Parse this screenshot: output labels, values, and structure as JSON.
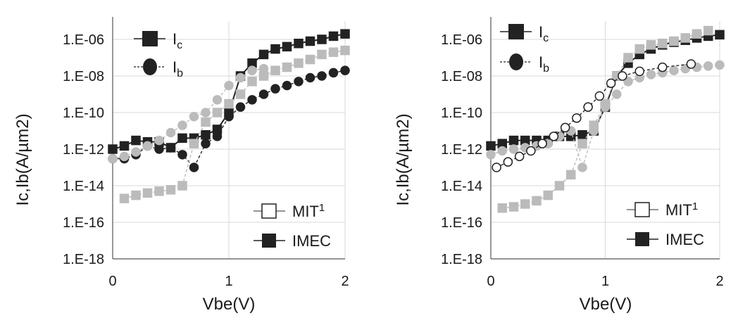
{
  "chart_data": [
    {
      "type": "scatter",
      "xlabel": "Vbe(V)",
      "ylabel": "Ic,Ib(A/µm2)",
      "xticks": [
        "0",
        "1",
        "2"
      ],
      "yticks": [
        "1.E-06",
        "1.E-08",
        "1.E-10",
        "1.E-12",
        "1.E-14",
        "1.E-16",
        "1.E-18"
      ],
      "xlim": [
        0,
        2
      ],
      "ylim": [
        1e-18,
        1e-05
      ],
      "yscale": "log",
      "grid": true,
      "legend_markers": {
        "ic_label": "I",
        "ic_sub": "c",
        "ib_label": "I",
        "ib_sub": "b"
      },
      "legend_sources": {
        "mit_label": "MIT",
        "mit_sup": "1",
        "imec_label": "IMEC"
      },
      "series": [
        {
          "name": "IMEC Ic",
          "color": "#222222",
          "marker": "square",
          "filled": true,
          "line": "solid",
          "x": [
            0,
            0.1,
            0.2,
            0.3,
            0.4,
            0.5,
            0.6,
            0.7,
            0.8,
            0.9,
            1.0,
            1.1,
            1.2,
            1.3,
            1.4,
            1.5,
            1.6,
            1.7,
            1.8,
            1.9,
            2.0
          ],
          "y": [
            1e-12,
            1.5e-12,
            3e-12,
            2.5e-12,
            2.5e-12,
            1.2e-12,
            4e-12,
            4e-12,
            6e-12,
            1.2e-11,
            1e-10,
            1e-08,
            5e-08,
            1.5e-07,
            3e-07,
            4e-07,
            6e-07,
            8e-07,
            1e-06,
            1.5e-06,
            2e-06
          ]
        },
        {
          "name": "IMEC Ib",
          "color": "#222222",
          "marker": "circle",
          "filled": true,
          "line": "dashed",
          "x": [
            0,
            0.1,
            0.2,
            0.3,
            0.4,
            0.5,
            0.6,
            0.7,
            0.8,
            0.9,
            1.0,
            1.1,
            1.2,
            1.3,
            1.4,
            1.5,
            1.6,
            1.7,
            1.8,
            1.9,
            2.0
          ],
          "y": [
            3e-13,
            3e-13,
            5e-13,
            1.5e-12,
            1e-12,
            1.2e-12,
            5e-13,
            1e-13,
            2e-12,
            5e-12,
            6e-11,
            2e-10,
            5e-10,
            1e-09,
            2e-09,
            3e-09,
            5e-09,
            8e-09,
            1e-08,
            1.5e-08,
            2e-08
          ]
        },
        {
          "name": "MIT Ic",
          "color": "#bbbbbb",
          "marker": "square",
          "filled": true,
          "line": "dashed",
          "x": [
            0.1,
            0.2,
            0.3,
            0.4,
            0.5,
            0.6,
            0.7,
            0.8,
            0.9,
            1.0,
            1.1,
            1.2,
            1.3,
            1.4,
            1.5,
            1.6,
            1.7,
            1.8,
            1.9,
            2.0
          ],
          "y": [
            2e-15,
            3e-15,
            4e-15,
            5e-15,
            6e-15,
            1e-14,
            2e-12,
            3e-11,
            1e-10,
            3e-10,
            1e-09,
            5e-09,
            1e-08,
            2e-08,
            3e-08,
            5e-08,
            8e-08,
            1.5e-07,
            2e-07,
            2.5e-07
          ]
        },
        {
          "name": "MIT Ib",
          "color": "#bbbbbb",
          "marker": "circle",
          "filled": true,
          "line": "dashed",
          "x": [
            0,
            0.1,
            0.2,
            0.3,
            0.4,
            0.5,
            0.6,
            0.7,
            0.8,
            0.9,
            1.0,
            1.1,
            1.2,
            1.3
          ],
          "y": [
            3e-13,
            4e-13,
            7e-13,
            1.5e-12,
            3e-12,
            8e-12,
            2e-11,
            6e-11,
            1e-10,
            5e-10,
            3e-09,
            8e-09,
            2e-08,
            2.5e-08
          ]
        }
      ]
    },
    {
      "type": "scatter",
      "xlabel": "Vbe(V)",
      "ylabel": "Ic,Ib(A/µm2)",
      "xticks": [
        "0",
        "1",
        "2"
      ],
      "yticks": [
        "1.E-06",
        "1.E-08",
        "1.E-10",
        "1.E-12",
        "1.E-14",
        "1.E-16",
        "1.E-18"
      ],
      "xlim": [
        0,
        2
      ],
      "ylim": [
        1e-18,
        1e-05
      ],
      "yscale": "log",
      "grid": true,
      "legend_markers": {
        "ic_label": "I",
        "ic_sub": "c",
        "ib_label": "I",
        "ib_sub": "b"
      },
      "legend_sources": {
        "mit_label": "MIT",
        "mit_sup": "1",
        "imec_label": "IMEC"
      },
      "series": [
        {
          "name": "IMEC Ic",
          "color": "#222222",
          "marker": "square",
          "filled": true,
          "line": "solid",
          "x": [
            0,
            0.1,
            0.2,
            0.3,
            0.4,
            0.5,
            0.6,
            0.7,
            0.8,
            0.9,
            1.0,
            1.1,
            1.2,
            1.3,
            1.4,
            1.5,
            1.6,
            1.7,
            1.8,
            1.9,
            2.0
          ],
          "y": [
            1.5e-12,
            2e-12,
            3e-12,
            3e-12,
            3e-12,
            3e-12,
            5e-12,
            5e-12,
            6e-12,
            1e-11,
            2e-10,
            1e-08,
            5e-08,
            1.5e-07,
            3e-07,
            5e-07,
            7e-07,
            9e-07,
            1.2e-06,
            1.5e-06,
            1.8e-06
          ]
        },
        {
          "name": "MIT Ic",
          "color": "#bbbbbb",
          "marker": "square",
          "filled": true,
          "line": "dashed",
          "x": [
            0.1,
            0.2,
            0.3,
            0.4,
            0.5,
            0.6,
            0.7,
            0.8,
            0.9,
            1.0,
            1.1,
            1.2,
            1.3,
            1.4,
            1.5,
            1.6,
            1.7,
            1.8,
            1.9
          ],
          "y": [
            6e-16,
            7e-16,
            1e-15,
            1.5e-15,
            3e-15,
            1e-14,
            4e-14,
            2e-12,
            2e-11,
            3e-10,
            1e-08,
            1e-07,
            3e-07,
            5e-07,
            6e-07,
            8e-07,
            1.2e-06,
            2e-06,
            3e-06
          ]
        },
        {
          "name": "MIT Ib",
          "color": "#bbbbbb",
          "marker": "circle",
          "filled": true,
          "line": "dashed",
          "x": [
            0,
            0.1,
            0.2,
            0.3,
            0.4,
            0.5,
            0.6,
            0.7,
            0.8,
            0.9,
            1.0,
            1.1,
            1.2,
            1.3,
            1.4,
            1.5,
            1.6,
            1.7,
            1.8,
            1.9,
            2.0
          ],
          "y": [
            5e-13,
            8e-13,
            1e-12,
            1.2e-12,
            1.5e-12,
            2e-12,
            5e-12,
            1e-11,
            1e-13,
            1e-11,
            2e-10,
            1e-09,
            5e-09,
            8e-09,
            1.2e-08,
            1.5e-08,
            2e-08,
            2.5e-08,
            3e-08,
            3.5e-08,
            4e-08
          ]
        },
        {
          "name": "IMEC Ib",
          "color": "#222222",
          "marker": "circle",
          "filled": false,
          "line": "dashed",
          "x": [
            0.05,
            0.15,
            0.25,
            0.35,
            0.45,
            0.55,
            0.65,
            0.75,
            0.85,
            0.95,
            1.05,
            1.15,
            1.3,
            1.5,
            1.75
          ],
          "y": [
            1e-13,
            2e-13,
            4e-13,
            8e-13,
            2e-12,
            5e-12,
            1.5e-11,
            5e-11,
            2e-10,
            8e-10,
            4e-09,
            1e-08,
            1.8e-08,
            3e-08,
            4.5e-08
          ]
        }
      ]
    }
  ]
}
